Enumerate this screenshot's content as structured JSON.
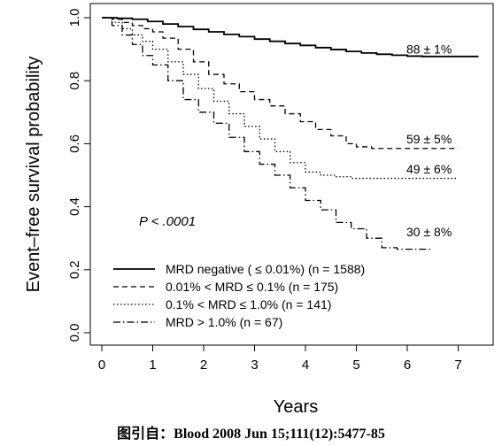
{
  "caption": "图引自：Blood 2008 Jun 15;111(12):5477-85",
  "chart_data": {
    "type": "line",
    "step": true,
    "xlabel": "Years",
    "ylabel": "Event–free survival probability",
    "xlim": [
      0,
      7.5
    ],
    "ylim": [
      0.0,
      1.0
    ],
    "xticks": [
      "0",
      "1",
      "2",
      "3",
      "4",
      "5",
      "6",
      "7"
    ],
    "yticks": [
      "0.0",
      "0.2",
      "0.4",
      "0.6",
      "0.8",
      "1.0"
    ],
    "grid": false,
    "legend_position": "bottom-left",
    "annotation": "P < .0001",
    "series": [
      {
        "name": "MRD negative ( ≤ 0.01%) (n = 1588)",
        "style": "solid",
        "end_label": "88 ± 1%",
        "x": [
          0,
          0.3,
          0.6,
          0.9,
          1.2,
          1.5,
          1.8,
          2.1,
          2.4,
          2.7,
          3.0,
          3.3,
          3.6,
          3.9,
          4.2,
          4.5,
          4.8,
          5.1,
          5.4,
          5.7,
          6.0,
          6.3,
          6.6,
          6.9,
          7.4
        ],
        "y": [
          1.0,
          0.998,
          0.995,
          0.988,
          0.98,
          0.972,
          0.963,
          0.955,
          0.947,
          0.94,
          0.932,
          0.925,
          0.918,
          0.912,
          0.905,
          0.899,
          0.893,
          0.888,
          0.884,
          0.881,
          0.878,
          0.877,
          0.877,
          0.877,
          0.877
        ]
      },
      {
        "name": "0.01% < MRD ≤ 0.1% (n = 175)",
        "style": "dashed",
        "end_label": "59 ± 5%",
        "x": [
          0,
          0.2,
          0.4,
          0.6,
          0.8,
          1.0,
          1.2,
          1.5,
          1.8,
          2.1,
          2.4,
          2.7,
          3.0,
          3.3,
          3.6,
          3.9,
          4.2,
          4.5,
          4.8,
          5.0,
          5.3,
          5.6,
          6.0,
          6.5,
          7.0
        ],
        "y": [
          1.0,
          0.995,
          0.985,
          0.975,
          0.965,
          0.955,
          0.935,
          0.9,
          0.86,
          0.82,
          0.79,
          0.765,
          0.74,
          0.72,
          0.695,
          0.67,
          0.645,
          0.625,
          0.6,
          0.59,
          0.585,
          0.585,
          0.585,
          0.585,
          0.585
        ]
      },
      {
        "name": "0.1% < MRD ≤ 1.0% (n = 141)",
        "style": "dotted",
        "end_label": "49 ± 6%",
        "x": [
          0,
          0.2,
          0.4,
          0.6,
          0.8,
          1.0,
          1.3,
          1.6,
          1.9,
          2.2,
          2.5,
          2.8,
          3.1,
          3.4,
          3.7,
          4.0,
          4.3,
          4.6,
          4.9,
          5.2,
          5.6,
          6.0,
          6.5,
          7.0
        ],
        "y": [
          1.0,
          0.985,
          0.965,
          0.945,
          0.925,
          0.9,
          0.86,
          0.82,
          0.775,
          0.735,
          0.695,
          0.655,
          0.615,
          0.575,
          0.54,
          0.51,
          0.5,
          0.495,
          0.49,
          0.49,
          0.49,
          0.49,
          0.49,
          0.49
        ]
      },
      {
        "name": "MRD > 1.0% (n = 67)",
        "style": "dashdot",
        "end_label": "30 ± 8%",
        "x": [
          0,
          0.2,
          0.4,
          0.6,
          0.8,
          1.0,
          1.3,
          1.6,
          1.9,
          2.2,
          2.5,
          2.8,
          3.1,
          3.4,
          3.7,
          4.0,
          4.3,
          4.6,
          4.9,
          5.2,
          5.5,
          5.8,
          6.1,
          6.5
        ],
        "y": [
          1.0,
          0.975,
          0.945,
          0.915,
          0.88,
          0.85,
          0.8,
          0.74,
          0.7,
          0.665,
          0.62,
          0.575,
          0.535,
          0.5,
          0.46,
          0.42,
          0.39,
          0.35,
          0.33,
          0.3,
          0.27,
          0.265,
          0.265,
          0.265
        ]
      }
    ]
  }
}
